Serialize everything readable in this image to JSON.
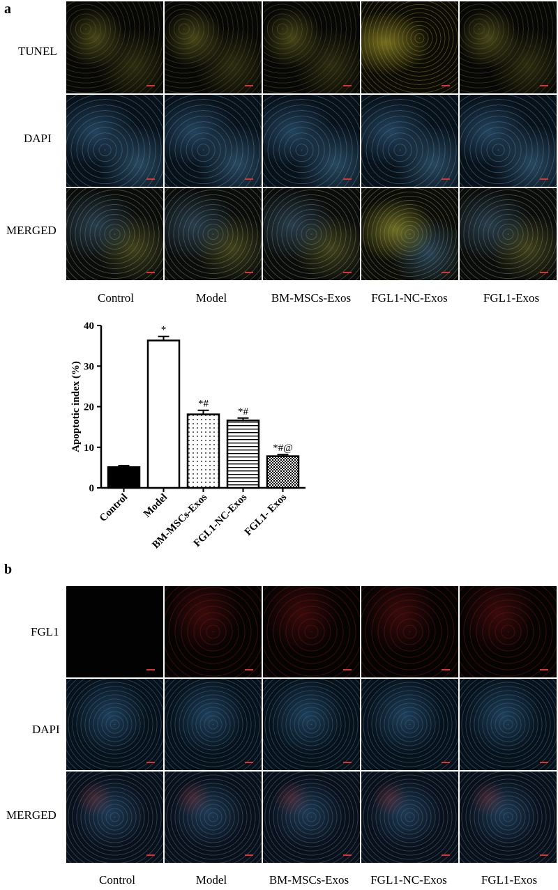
{
  "panel_a": {
    "letter": "a",
    "row_labels": [
      "TUNEL",
      "DAPI",
      "MERGED"
    ],
    "col_labels": [
      "Control",
      "Model",
      "BM-MSCs-Exos",
      "FGL1-NC-Exos",
      "FGL1-Exos"
    ]
  },
  "panel_b": {
    "letter": "b",
    "row_labels": [
      "FGL1",
      "DAPI",
      "MERGED"
    ],
    "col_labels": [
      "Control",
      "Model",
      "BM-MSCs-Exos",
      "FGL1-NC-Exos",
      "FGL1-Exos"
    ]
  },
  "chart_data": {
    "type": "bar",
    "ylabel": "Apoptotic index (%)",
    "xlabel": "",
    "ylim": [
      0,
      40
    ],
    "yticks": [
      0,
      10,
      20,
      30,
      40
    ],
    "categories": [
      "Control",
      "Model",
      "BM-MSCs-Exos",
      "FGL1-NC-Exos",
      "FGL1- Exos"
    ],
    "values": [
      5.1,
      36.3,
      18.1,
      16.6,
      7.8
    ],
    "errors": [
      0.4,
      1.0,
      1.0,
      0.6,
      0.4
    ],
    "annotations": [
      "",
      "*",
      "*#",
      "*#",
      "*#@"
    ],
    "fills": [
      "solid-black",
      "white",
      "dotted",
      "horizontal-lines",
      "checker"
    ]
  },
  "colors": {
    "bar_stroke": "#000000",
    "control_fill": "#000000"
  }
}
